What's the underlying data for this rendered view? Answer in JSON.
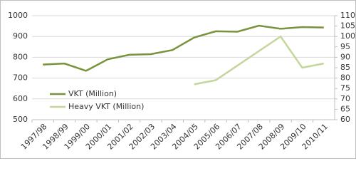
{
  "chart_data": {
    "type": "line",
    "categories": [
      "1997/98",
      "1998/99",
      "1999/00",
      "2000/01",
      "2001/02",
      "2002/03",
      "2003/04",
      "2004/05",
      "2005/06",
      "2006/07",
      "2007/08",
      "2008/09",
      "2009/10",
      "2010/11"
    ],
    "series": [
      {
        "name": "VKT (Million)",
        "color": "#77933c",
        "values": [
          765,
          770,
          735,
          790,
          812,
          815,
          835,
          895,
          925,
          923,
          952,
          937,
          945,
          943
        ]
      },
      {
        "name": "Heavy VKT (Million)",
        "color": "#c3d69b",
        "axis": "y2",
        "values": [
          null,
          null,
          null,
          null,
          null,
          null,
          null,
          77,
          79,
          86,
          93,
          100,
          85,
          87
        ]
      }
    ],
    "ylim": [
      500,
      1000
    ],
    "yticks": [
      500,
      600,
      700,
      800,
      900,
      1000
    ],
    "y2lim": [
      60,
      110
    ],
    "y2ticks": [
      60,
      65,
      70,
      75,
      80,
      85,
      90,
      95,
      100,
      105,
      110
    ],
    "grid": true,
    "legend": "left"
  }
}
